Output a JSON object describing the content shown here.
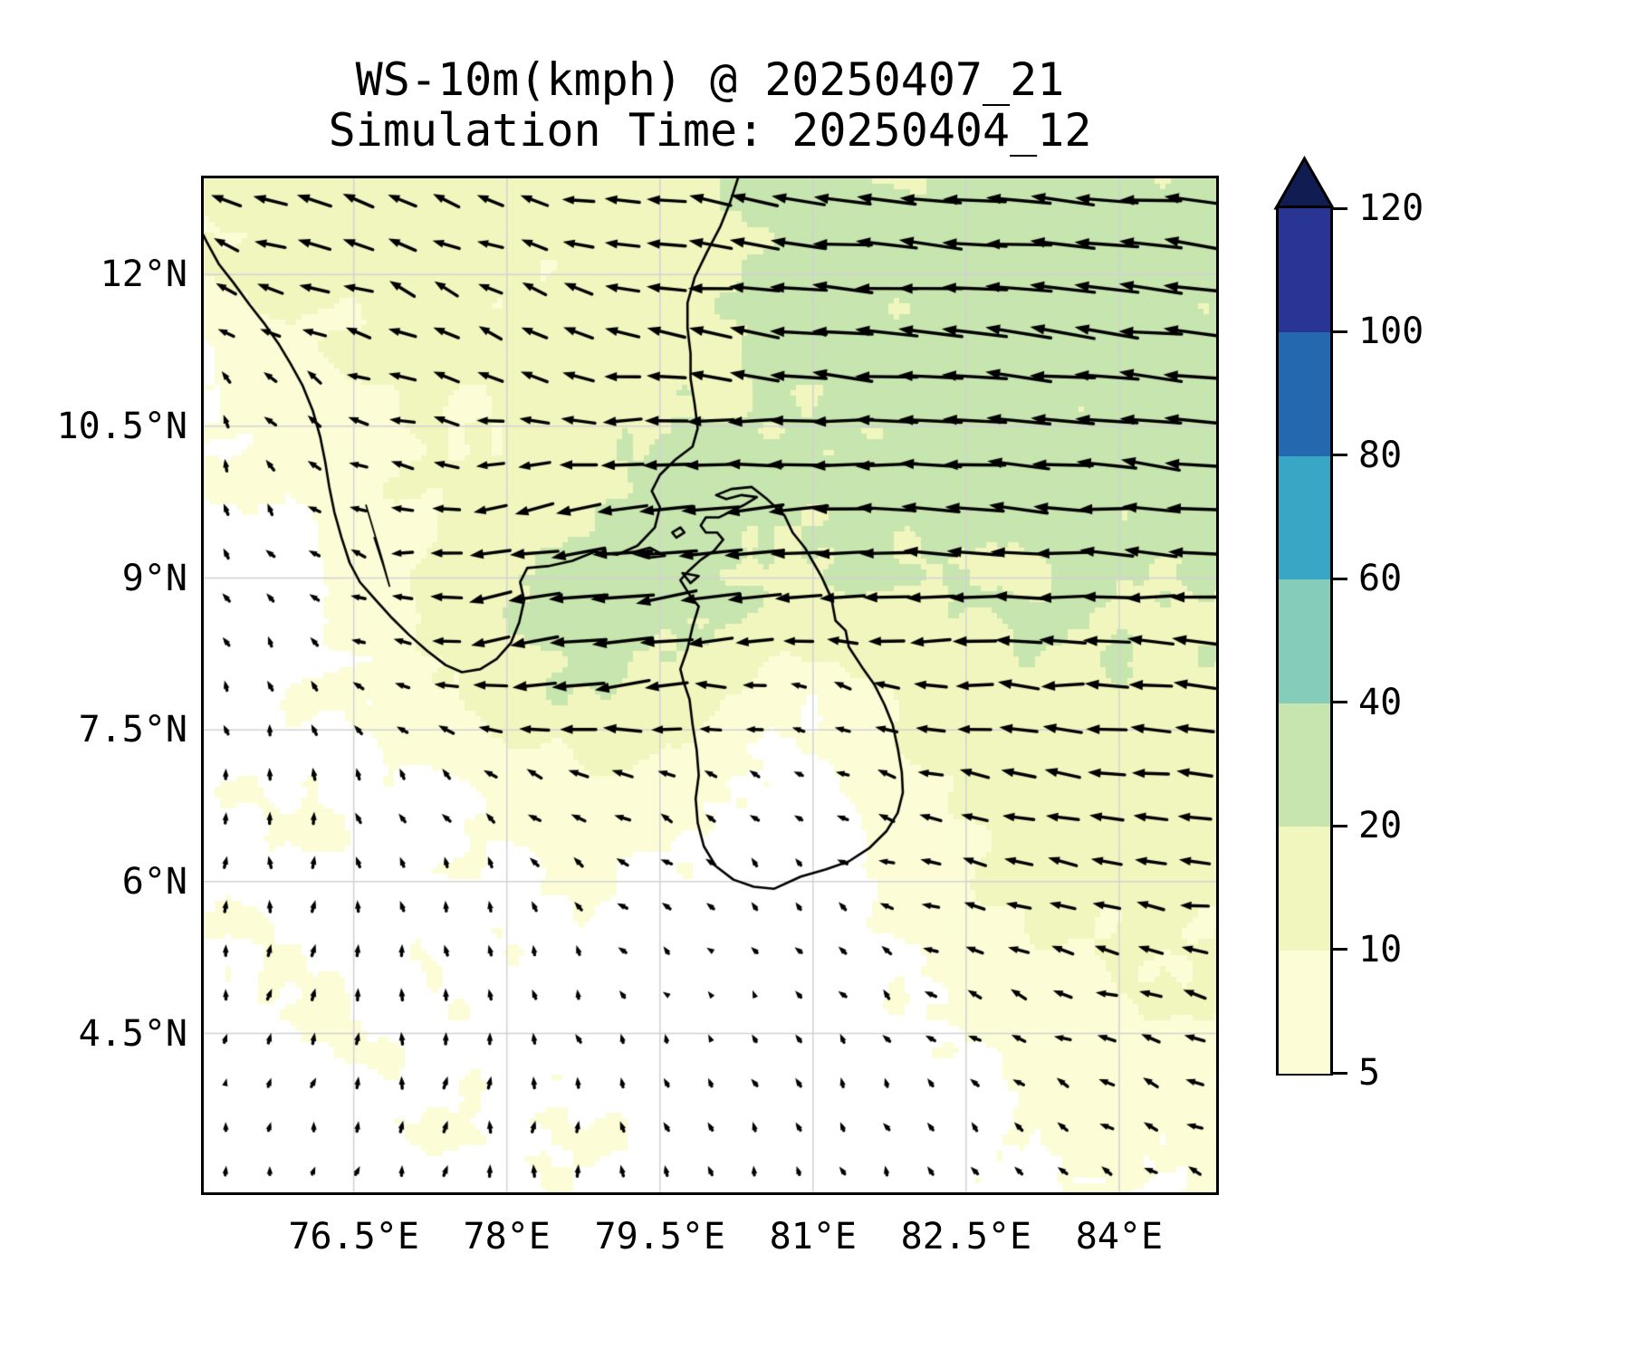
{
  "title": {
    "line1": "WS-10m(kmph) @ 20250407_21",
    "line2": "Simulation Time: 20250404_12"
  },
  "axes": {
    "extent": {
      "lon_min": 75.03,
      "lon_max": 84.95,
      "lat_min": 2.93,
      "lat_max": 12.95
    },
    "x_ticks": [
      {
        "label": "76.5°E",
        "lon": 76.5
      },
      {
        "label": "78°E",
        "lon": 78.0
      },
      {
        "label": "79.5°E",
        "lon": 79.5
      },
      {
        "label": "81°E",
        "lon": 81.0
      },
      {
        "label": "82.5°E",
        "lon": 82.5
      },
      {
        "label": "84°E",
        "lon": 84.0
      }
    ],
    "y_ticks": [
      {
        "label": "12°N",
        "lat": 12.0
      },
      {
        "label": "10.5°N",
        "lat": 10.5
      },
      {
        "label": "9°N",
        "lat": 9.0
      },
      {
        "label": "7.5°N",
        "lat": 7.5
      },
      {
        "label": "6°N",
        "lat": 6.0
      },
      {
        "label": "4.5°N",
        "lat": 4.5
      }
    ],
    "gridline_color": "#d2d2d2"
  },
  "chart_data": {
    "type": "heatmap",
    "subtype": "filled-contour wind speed map with quiver arrows",
    "title": "WS-10m(kmph) @ 20250407_21",
    "subtitle": "Simulation Time: 20250404_12",
    "xlabel_ticks": [
      "76.5°E",
      "78°E",
      "79.5°E",
      "81°E",
      "82.5°E",
      "84°E"
    ],
    "ylabel_ticks": [
      "12°N",
      "10.5°N",
      "9°N",
      "7.5°N",
      "6°N",
      "4.5°N"
    ],
    "colorbar": {
      "levels": [
        5,
        10,
        20,
        40,
        60,
        80,
        100,
        120
      ],
      "labels": [
        "5",
        "10",
        "20",
        "40",
        "60",
        "80",
        "100",
        "120"
      ],
      "colors": [
        "#fcfdd6",
        "#f1f6be",
        "#c7e5ae",
        "#85ccba",
        "#3aa6c5",
        "#2468b0",
        "#283593"
      ],
      "extend_color": "#111d52",
      "below_color": "#ffffff"
    },
    "wind_field": {
      "units": "kmph",
      "lon_start": 75,
      "lon_step": 1,
      "lat_start": 13,
      "lat_step": -1,
      "u": [
        [
          -13,
          -15,
          -12,
          -11,
          -14,
          -17,
          -22,
          -24,
          -26,
          -25,
          -24
        ],
        [
          -8,
          -13,
          -11,
          -9,
          -13,
          -18,
          -24,
          -26,
          -27,
          -26,
          -25
        ],
        [
          -2,
          -6,
          -11,
          -10,
          -14,
          -17,
          -24,
          -26,
          -27,
          -26,
          -25
        ],
        [
          -1,
          -4,
          -9,
          -12,
          -17,
          -22,
          -26,
          -25,
          -25,
          -24,
          -24
        ],
        [
          -2,
          -3,
          -9,
          -20,
          -26,
          -27,
          -21,
          -21,
          -22,
          -21,
          -20
        ],
        [
          -1,
          -2,
          -6,
          -16,
          -25,
          -13,
          -5,
          -13,
          -17,
          -18,
          -17
        ],
        [
          0,
          -1,
          -2,
          -5,
          -8,
          -4,
          -3,
          -9,
          -14,
          -15,
          -14
        ],
        [
          1,
          0,
          -1,
          -2,
          -4,
          -3,
          -2,
          -7,
          -11,
          -12,
          -12
        ],
        [
          1,
          1,
          0,
          -1,
          -2,
          -2,
          -2,
          -4,
          -7,
          -9,
          -10
        ],
        [
          0,
          1,
          1,
          0,
          -1,
          -2,
          -1,
          -2,
          -4,
          -6,
          -7
        ],
        [
          1,
          1,
          1,
          1,
          0,
          -1,
          -2,
          -1,
          -3,
          -4,
          -5
        ]
      ],
      "v": [
        [
          3,
          4,
          3,
          4,
          2,
          3,
          2,
          3,
          2,
          3,
          2
        ],
        [
          4,
          3,
          5,
          4,
          3,
          2,
          3,
          2,
          3,
          2,
          3
        ],
        [
          5,
          4,
          3,
          4,
          2,
          3,
          2,
          2,
          2,
          3,
          2
        ],
        [
          5,
          4,
          2,
          -2,
          -2,
          -2,
          -1,
          1,
          2,
          2,
          2
        ],
        [
          4,
          3,
          0,
          -3,
          -4,
          -3,
          -1,
          0,
          1,
          1,
          1
        ],
        [
          4,
          4,
          2,
          -2,
          -3,
          0,
          2,
          1,
          1,
          1,
          1
        ],
        [
          4,
          5,
          4,
          3,
          2,
          3,
          2,
          2,
          1,
          2,
          2
        ],
        [
          5,
          5,
          4,
          4,
          3,
          3,
          3,
          2,
          1,
          2,
          2
        ],
        [
          4,
          5,
          5,
          4,
          3,
          2,
          3,
          3,
          3,
          2,
          2
        ],
        [
          3,
          4,
          5,
          5,
          4,
          3,
          4,
          3,
          3,
          3,
          3
        ],
        [
          4,
          3,
          4,
          5,
          5,
          4,
          3,
          4,
          3,
          3,
          3
        ]
      ]
    },
    "coastlines": {
      "india": [
        [
          74.92,
          12.6
        ],
        [
          75.06,
          12.32
        ],
        [
          75.18,
          12.1
        ],
        [
          75.32,
          11.92
        ],
        [
          75.48,
          11.7
        ],
        [
          75.62,
          11.52
        ],
        [
          75.76,
          11.32
        ],
        [
          75.88,
          11.12
        ],
        [
          76.0,
          10.9
        ],
        [
          76.1,
          10.65
        ],
        [
          76.17,
          10.4
        ],
        [
          76.22,
          10.15
        ],
        [
          76.26,
          9.9
        ],
        [
          76.31,
          9.65
        ],
        [
          76.38,
          9.4
        ],
        [
          76.46,
          9.15
        ],
        [
          76.56,
          8.96
        ],
        [
          76.7,
          8.8
        ],
        [
          76.86,
          8.62
        ],
        [
          77.04,
          8.44
        ],
        [
          77.22,
          8.28
        ],
        [
          77.4,
          8.14
        ],
        [
          77.56,
          8.07
        ],
        [
          77.74,
          8.1
        ],
        [
          77.9,
          8.2
        ],
        [
          78.04,
          8.36
        ],
        [
          78.12,
          8.56
        ],
        [
          78.17,
          8.78
        ],
        [
          78.13,
          8.96
        ],
        [
          78.2,
          9.1
        ],
        [
          78.42,
          9.12
        ],
        [
          78.64,
          9.17
        ],
        [
          78.86,
          9.26
        ],
        [
          79.08,
          9.23
        ],
        [
          79.28,
          9.32
        ],
        [
          79.45,
          9.5
        ],
        [
          79.5,
          9.7
        ],
        [
          79.42,
          9.86
        ],
        [
          79.5,
          10.02
        ],
        [
          79.65,
          10.17
        ],
        [
          79.82,
          10.3
        ],
        [
          79.87,
          10.48
        ],
        [
          79.84,
          10.72
        ],
        [
          79.8,
          10.97
        ],
        [
          79.8,
          11.22
        ],
        [
          79.77,
          11.47
        ],
        [
          79.77,
          11.72
        ],
        [
          79.84,
          11.97
        ],
        [
          79.96,
          12.22
        ],
        [
          80.09,
          12.47
        ],
        [
          80.19,
          12.72
        ],
        [
          80.28,
          13.0
        ]
      ],
      "sri_lanka": [
        [
          79.7,
          8.98
        ],
        [
          79.78,
          9.07
        ],
        [
          79.9,
          9.18
        ],
        [
          80.03,
          9.27
        ],
        [
          80.12,
          9.38
        ],
        [
          80.06,
          9.45
        ],
        [
          79.95,
          9.45
        ],
        [
          79.9,
          9.52
        ],
        [
          79.95,
          9.6
        ],
        [
          80.08,
          9.6
        ],
        [
          80.18,
          9.65
        ],
        [
          80.32,
          9.72
        ],
        [
          80.45,
          9.8
        ],
        [
          80.3,
          9.82
        ],
        [
          80.15,
          9.78
        ],
        [
          80.05,
          9.82
        ],
        [
          80.2,
          9.88
        ],
        [
          80.4,
          9.9
        ],
        [
          80.55,
          9.78
        ],
        [
          80.72,
          9.62
        ],
        [
          80.8,
          9.45
        ],
        [
          80.92,
          9.3
        ],
        [
          81.08,
          9.02
        ],
        [
          81.18,
          8.8
        ],
        [
          81.22,
          8.58
        ],
        [
          81.32,
          8.48
        ],
        [
          81.35,
          8.32
        ],
        [
          81.48,
          8.12
        ],
        [
          81.6,
          7.95
        ],
        [
          81.7,
          7.75
        ],
        [
          81.78,
          7.55
        ],
        [
          81.83,
          7.32
        ],
        [
          81.87,
          7.08
        ],
        [
          81.88,
          6.88
        ],
        [
          81.83,
          6.68
        ],
        [
          81.72,
          6.5
        ],
        [
          81.55,
          6.33
        ],
        [
          81.35,
          6.2
        ],
        [
          81.12,
          6.12
        ],
        [
          80.88,
          6.05
        ],
        [
          80.62,
          5.93
        ],
        [
          80.42,
          5.95
        ],
        [
          80.22,
          6.02
        ],
        [
          80.05,
          6.15
        ],
        [
          79.93,
          6.35
        ],
        [
          79.87,
          6.58
        ],
        [
          79.85,
          6.82
        ],
        [
          79.88,
          7.05
        ],
        [
          79.86,
          7.3
        ],
        [
          79.82,
          7.55
        ],
        [
          79.79,
          7.8
        ],
        [
          79.73,
          7.98
        ],
        [
          79.7,
          8.1
        ],
        [
          79.77,
          8.3
        ],
        [
          79.82,
          8.52
        ],
        [
          79.88,
          8.72
        ],
        [
          79.8,
          8.82
        ],
        [
          79.7,
          8.98
        ]
      ],
      "islands": [
        [
          [
            79.22,
            9.25
          ],
          [
            79.4,
            9.3
          ],
          [
            79.55,
            9.22
          ],
          [
            79.38,
            9.2
          ],
          [
            79.22,
            9.25
          ]
        ],
        [
          [
            79.62,
            9.45
          ],
          [
            79.7,
            9.5
          ],
          [
            79.74,
            9.45
          ],
          [
            79.66,
            9.4
          ],
          [
            79.62,
            9.45
          ]
        ],
        [
          [
            79.72,
            9.05
          ],
          [
            79.88,
            9.02
          ],
          [
            79.8,
            8.95
          ],
          [
            79.72,
            9.05
          ]
        ]
      ],
      "lakes": [
        [
          [
            76.62,
            9.72
          ],
          [
            76.7,
            9.45
          ],
          [
            76.78,
            9.18
          ],
          [
            76.85,
            8.92
          ],
          [
            76.79,
            9.12
          ],
          [
            76.7,
            9.4
          ]
        ]
      ]
    }
  }
}
